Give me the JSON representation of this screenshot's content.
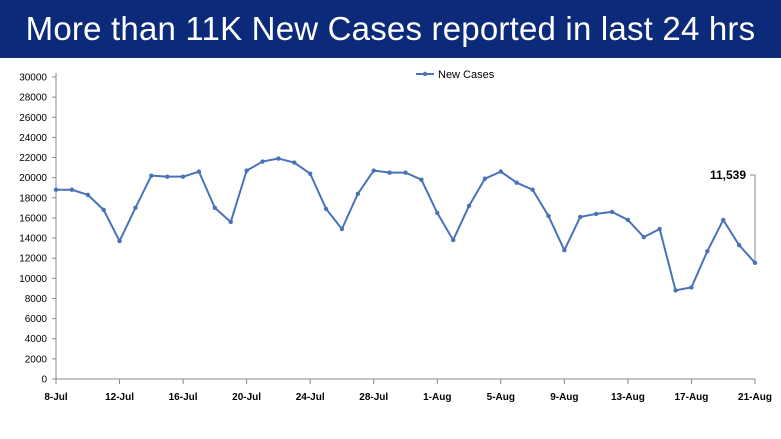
{
  "header": {
    "title": "More than 11K New Cases reported in last 24 hrs"
  },
  "colors": {
    "header_bg": "#0b2a7a",
    "series": "#4a72b8"
  },
  "chart_data": {
    "type": "line",
    "title": "",
    "xlabel": "",
    "ylabel": "",
    "legend": {
      "position": "top-center",
      "entries": [
        "New Cases"
      ]
    },
    "grid": false,
    "ylim": [
      0,
      30000
    ],
    "y_ticks": [
      0,
      2000,
      4000,
      6000,
      8000,
      10000,
      12000,
      14000,
      16000,
      18000,
      20000,
      22000,
      24000,
      26000,
      28000,
      30000
    ],
    "x": [
      "8-Jul",
      "9-Jul",
      "10-Jul",
      "11-Jul",
      "12-Jul",
      "13-Jul",
      "14-Jul",
      "15-Jul",
      "16-Jul",
      "17-Jul",
      "18-Jul",
      "19-Jul",
      "20-Jul",
      "21-Jul",
      "22-Jul",
      "23-Jul",
      "24-Jul",
      "25-Jul",
      "26-Jul",
      "27-Jul",
      "28-Jul",
      "29-Jul",
      "30-Jul",
      "31-Jul",
      "1-Aug",
      "2-Aug",
      "3-Aug",
      "4-Aug",
      "5-Aug",
      "6-Aug",
      "7-Aug",
      "8-Aug",
      "9-Aug",
      "10-Aug",
      "11-Aug",
      "12-Aug",
      "13-Aug",
      "14-Aug",
      "15-Aug",
      "16-Aug",
      "17-Aug",
      "18-Aug",
      "19-Aug",
      "20-Aug",
      "21-Aug"
    ],
    "x_tick_labels": [
      "8-Jul",
      "12-Jul",
      "16-Jul",
      "20-Jul",
      "24-Jul",
      "28-Jul",
      "1-Aug",
      "5-Aug",
      "9-Aug",
      "13-Aug",
      "17-Aug",
      "21-Aug"
    ],
    "series": [
      {
        "name": "New Cases",
        "values": [
          18800,
          18800,
          18300,
          16800,
          13700,
          17000,
          20200,
          20100,
          20100,
          20600,
          17000,
          15600,
          20700,
          21600,
          21900,
          21500,
          20400,
          16900,
          14900,
          18400,
          20700,
          20500,
          20500,
          19800,
          16500,
          13800,
          17200,
          19900,
          20600,
          19500,
          18800,
          16200,
          12800,
          16100,
          16400,
          16600,
          15800,
          14100,
          14900,
          8800,
          9100,
          12700,
          15800,
          13300,
          11539
        ]
      }
    ],
    "annotations": [
      {
        "x": "21-Aug",
        "text": "11,539"
      }
    ]
  }
}
